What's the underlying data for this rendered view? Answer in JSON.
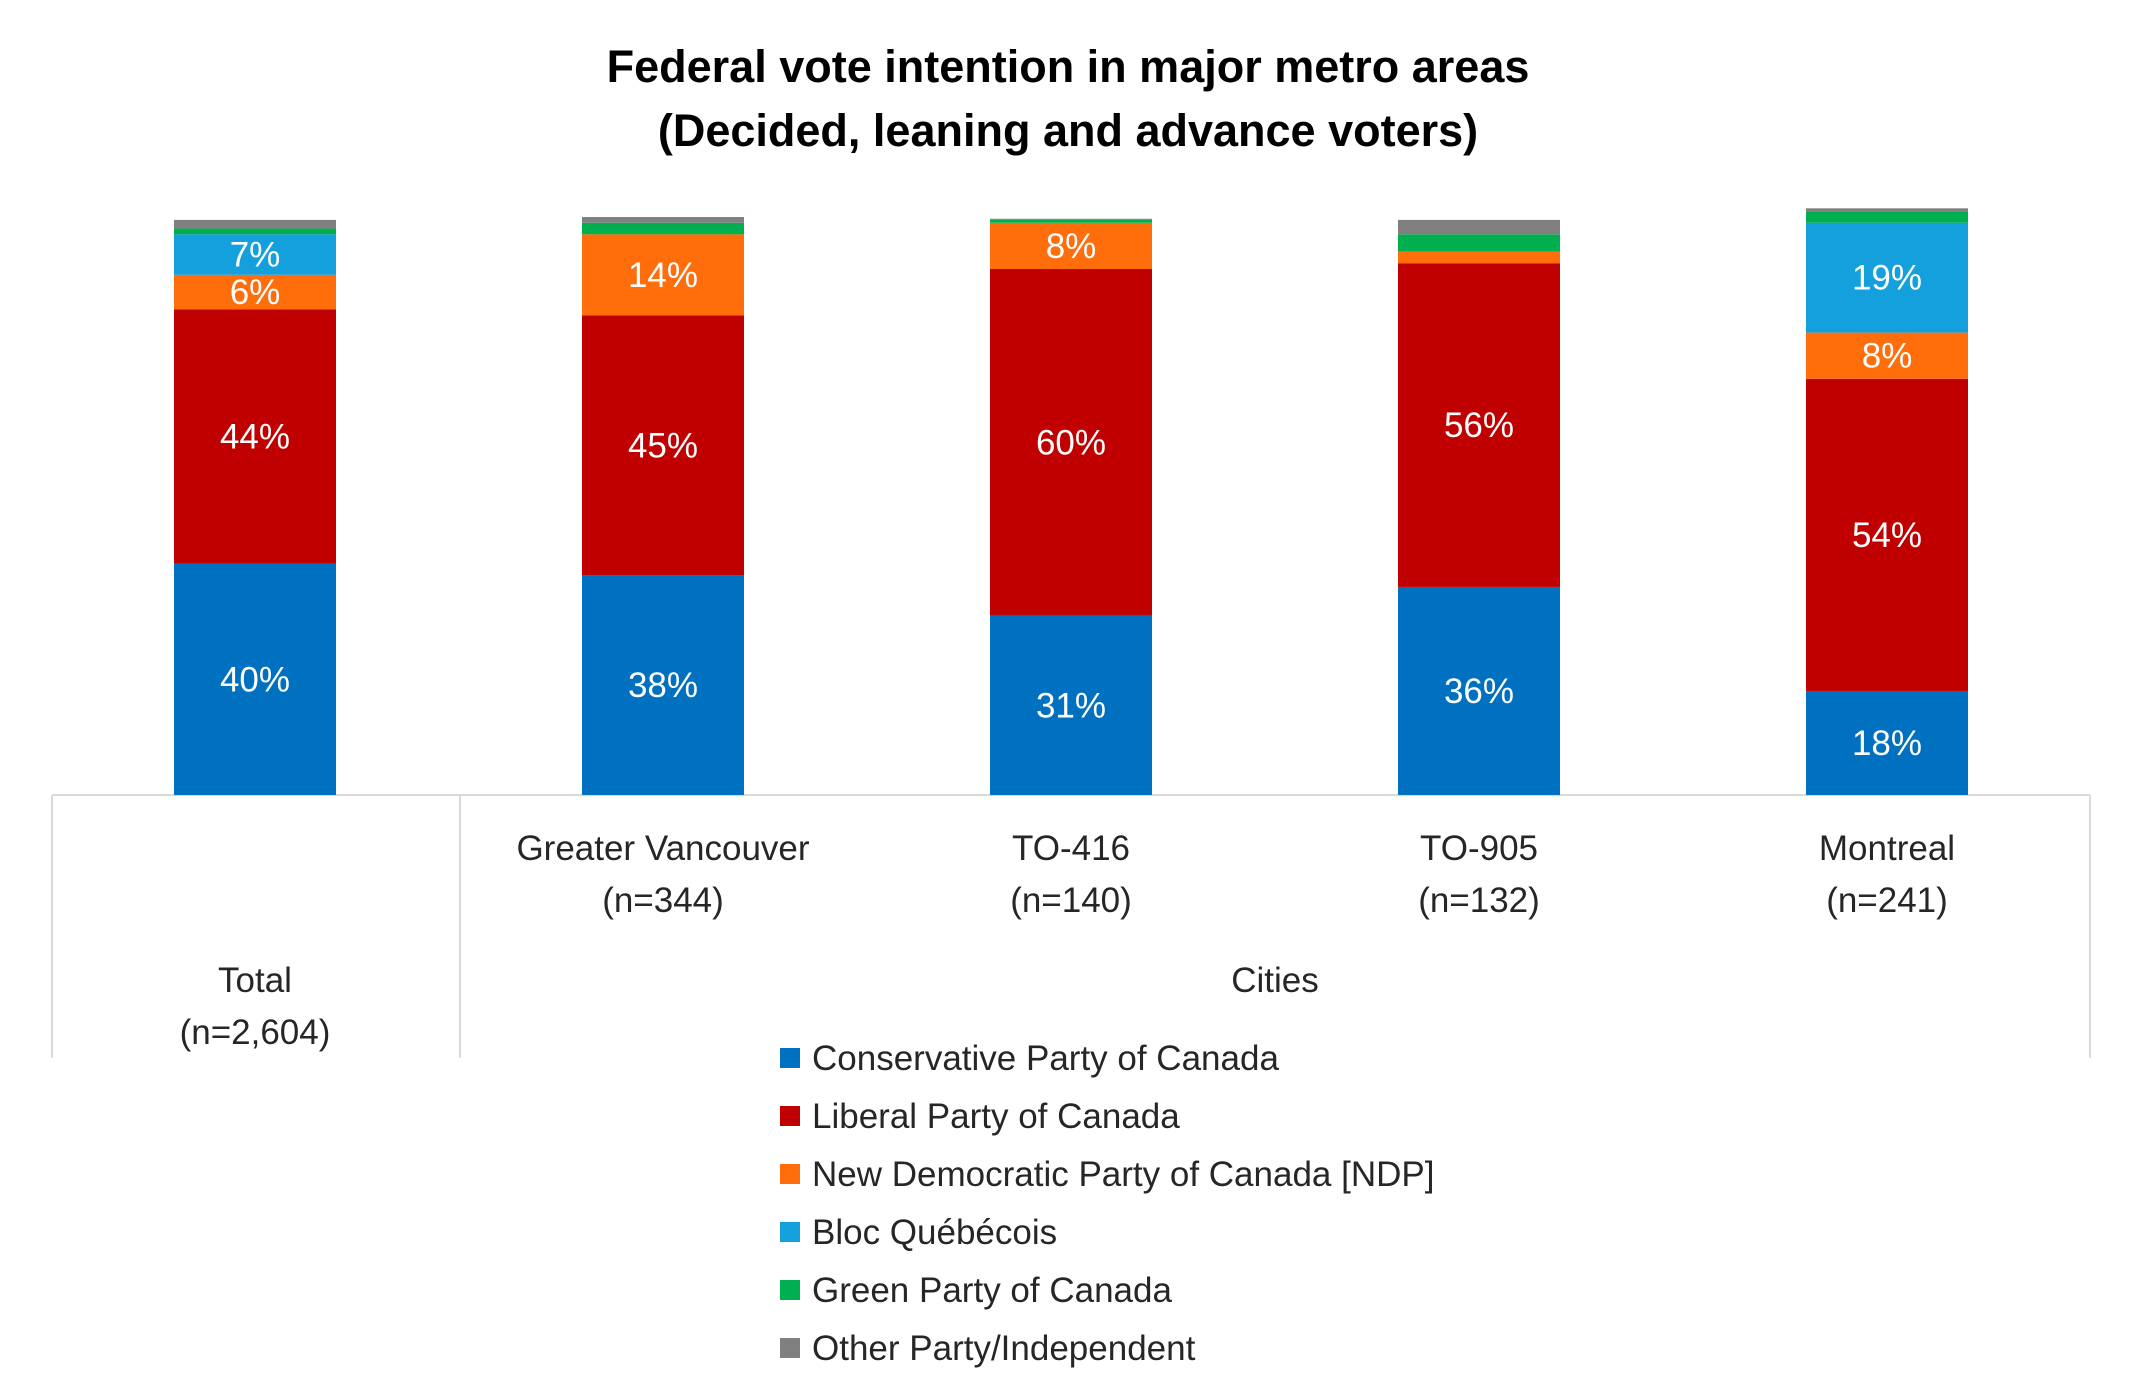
{
  "chart_data": {
    "type": "bar",
    "stacked": true,
    "title": "Federal vote intention in major metro areas",
    "subtitle": "(Decided, leaning and advance voters)",
    "categories": [
      {
        "name": "Total",
        "n": "(n=2,604)",
        "group": ""
      },
      {
        "name": "Greater Vancouver",
        "n": "(n=344)",
        "group": "Cities"
      },
      {
        "name": "TO-416",
        "n": "(n=140)",
        "group": "Cities"
      },
      {
        "name": "TO-905",
        "n": "(n=132)",
        "group": "Cities"
      },
      {
        "name": "Montreal",
        "n": "(n=241)",
        "group": "Cities"
      }
    ],
    "group_label": "Cities",
    "series": [
      {
        "name": "Conservative Party of Canada",
        "color": "#0070C0",
        "values": [
          40,
          38,
          31,
          36,
          18
        ],
        "labels": [
          "40%",
          "38%",
          "31%",
          "36%",
          "18%"
        ]
      },
      {
        "name": "Liberal Party of Canada",
        "color": "#C00000",
        "values": [
          44,
          45,
          60,
          56,
          54
        ],
        "labels": [
          "44%",
          "45%",
          "60%",
          "56%",
          "54%"
        ]
      },
      {
        "name": "New Democratic Party of Canada [NDP]",
        "color": "#FF6E0A",
        "values": [
          6,
          14,
          8,
          2,
          8
        ],
        "labels": [
          "6%",
          "14%",
          "8%",
          "",
          "8%"
        ]
      },
      {
        "name": "Bloc Québécois",
        "color": "#14A0DC",
        "values": [
          7,
          0,
          0,
          0,
          19
        ],
        "labels": [
          "7%",
          "",
          "",
          "",
          "19%"
        ]
      },
      {
        "name": "Green Party of Canada",
        "color": "#00B050",
        "values": [
          1,
          2,
          0.5,
          3,
          2
        ],
        "labels": [
          "",
          "",
          "",
          "",
          ""
        ]
      },
      {
        "name": "Other Party/Independent",
        "color": "#808080",
        "values": [
          1.5,
          1,
          0.2,
          2.5,
          0.5
        ],
        "labels": [
          "",
          "",
          "",
          "",
          ""
        ]
      }
    ],
    "ylim": [
      0,
      100
    ],
    "grid": false,
    "legend_position": "bottom"
  }
}
